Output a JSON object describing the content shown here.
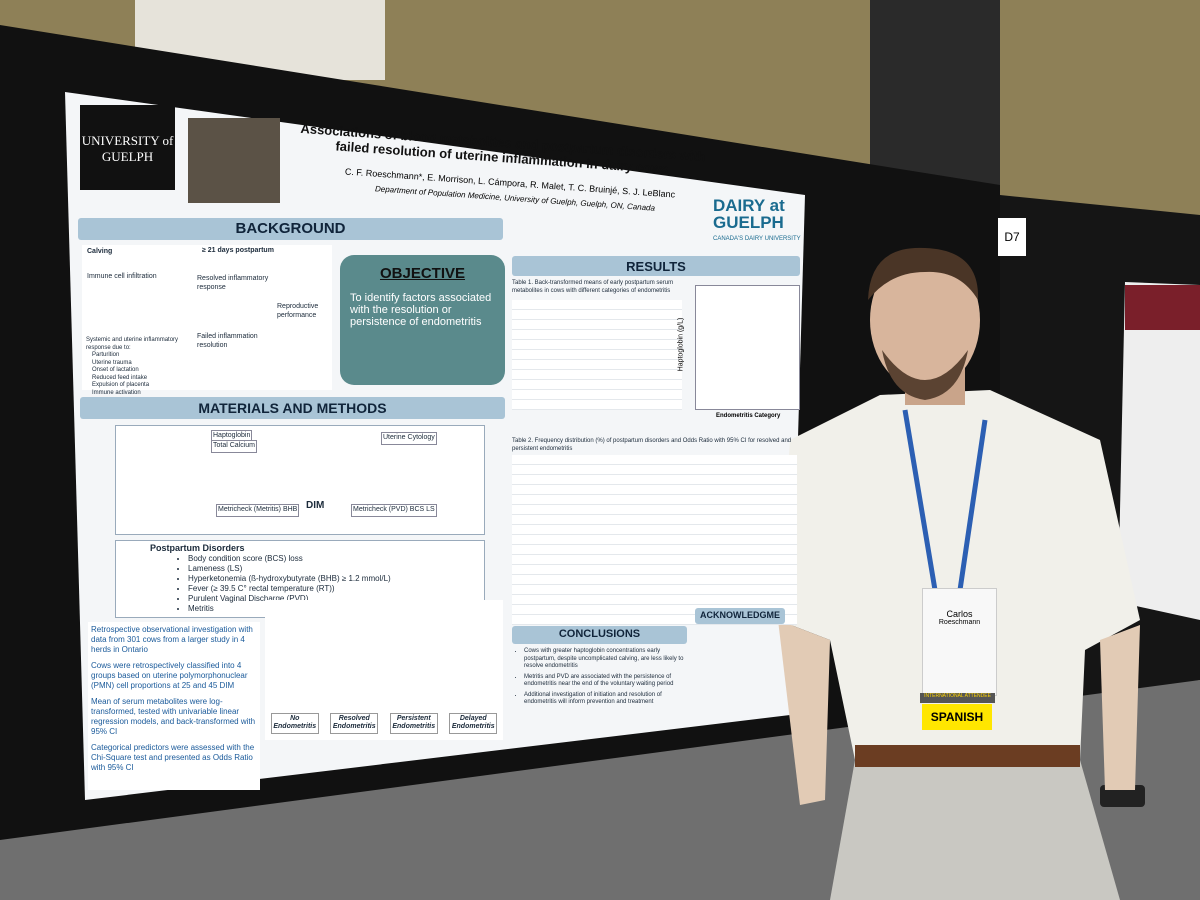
{
  "poster": {
    "university": "UNIVERSITY of GUELPH",
    "title": "Associations of blood metabolites and postpartum disorders with failed resolution of uterine inflammation in dairy cows",
    "authors": "C. F. Roeschmann*, E. Morrison, L. Cámpora, R. Malet, T. C. Bruinjé, S. J. LeBlanc",
    "department": "Department of Population Medicine, University of Guelph, Guelph, ON, Canada",
    "logo": "DAIRY at GUELPH",
    "logo_tagline": "CANADA'S DAIRY UNIVERSITY",
    "headings": {
      "background": "BACKGROUND",
      "objective": "OBJECTIVE",
      "methods": "MATERIALS AND METHODS",
      "results": "RESULTS",
      "conclusions": "CONCLUSIONS",
      "acknowledgments": "ACKNOWLEDGME"
    },
    "objective": "To identify factors associated with the resolution or persistence of endometritis",
    "background_labels": [
      "Calving",
      "≥ 21 days postpartum",
      "Immune cell infiltration",
      "Resolved inflammatory response",
      "Failed inflammation resolution",
      "Reproductive performance"
    ],
    "background_list": [
      "Systemic and uterine inflammatory response due to:",
      "Parturition",
      "Uterine trauma",
      "Onset of lactation",
      "Reduced feed intake",
      "Expulsion of placenta",
      "Immune activation"
    ],
    "timeline": {
      "label": "DIM",
      "measures": [
        "Haptoglobin",
        "Total Calcium",
        "Uterine Cytology",
        "Metricheck (Metritis) BHB",
        "Metricheck (PVD) BCS LS"
      ]
    },
    "disorders_heading": "Postpartum Disorders",
    "disorders": [
      "Body condition score (BCS) loss",
      "Lameness (LS)",
      "Hyperketonemia (ß-hydroxybutyrate (BHB) ≥ 1.2 mmol/L)",
      "Fever (≥ 39.5 C° rectal temperature (RT))",
      "Purulent Vaginal Discharge (PVD)",
      "Metritis"
    ],
    "methods_notes": [
      "Retrospective observational investigation with data from 301 cows from a larger study in 4 herds in Ontario",
      "Cows were retrospectively classified into 4 groups based on uterine polymorphonuclear (PMN) cell proportions at 25 and 45 DIM",
      "Mean of serum metabolites were log-transformed, tested with univariable linear regression models, and back-transformed with 95% CI",
      "Categorical predictors were assessed with the Chi-Square test and presented as Odds Ratio with 95% CI"
    ],
    "groups": [
      "No Endometritis",
      "Resolved Endometritis",
      "Persistent Endometritis",
      "Delayed Endometritis"
    ],
    "table1": "Table 1. Back-transformed means of early postpartum serum metabolites in cows with different categories of endometritis",
    "table2": "Table 2. Frequency distribution (%) of postpartum disorders and Odds Ratio with 95% CI for resolved and persistent endometritis",
    "chart_axis": "Haptoglobin (g/L)",
    "chart_xlabel": "Endometritis Category",
    "conclusions": [
      "Cows with greater haptoglobin concentrations early postpartum, despite uncomplicated calving, are less likely to resolve endometritis",
      "Metritis and PVD are associated with the persistence of endometritis near the end of the voluntary waiting period",
      "Additional investigation of initiation and resolution of endometritis will inform prevention and treatment"
    ]
  },
  "booth_number": "D7",
  "badge": {
    "name": "Carlos",
    "surname": "Roeschmann",
    "ribbon": "INTERNATIONAL ATTENDEE",
    "language": "SPANISH"
  }
}
